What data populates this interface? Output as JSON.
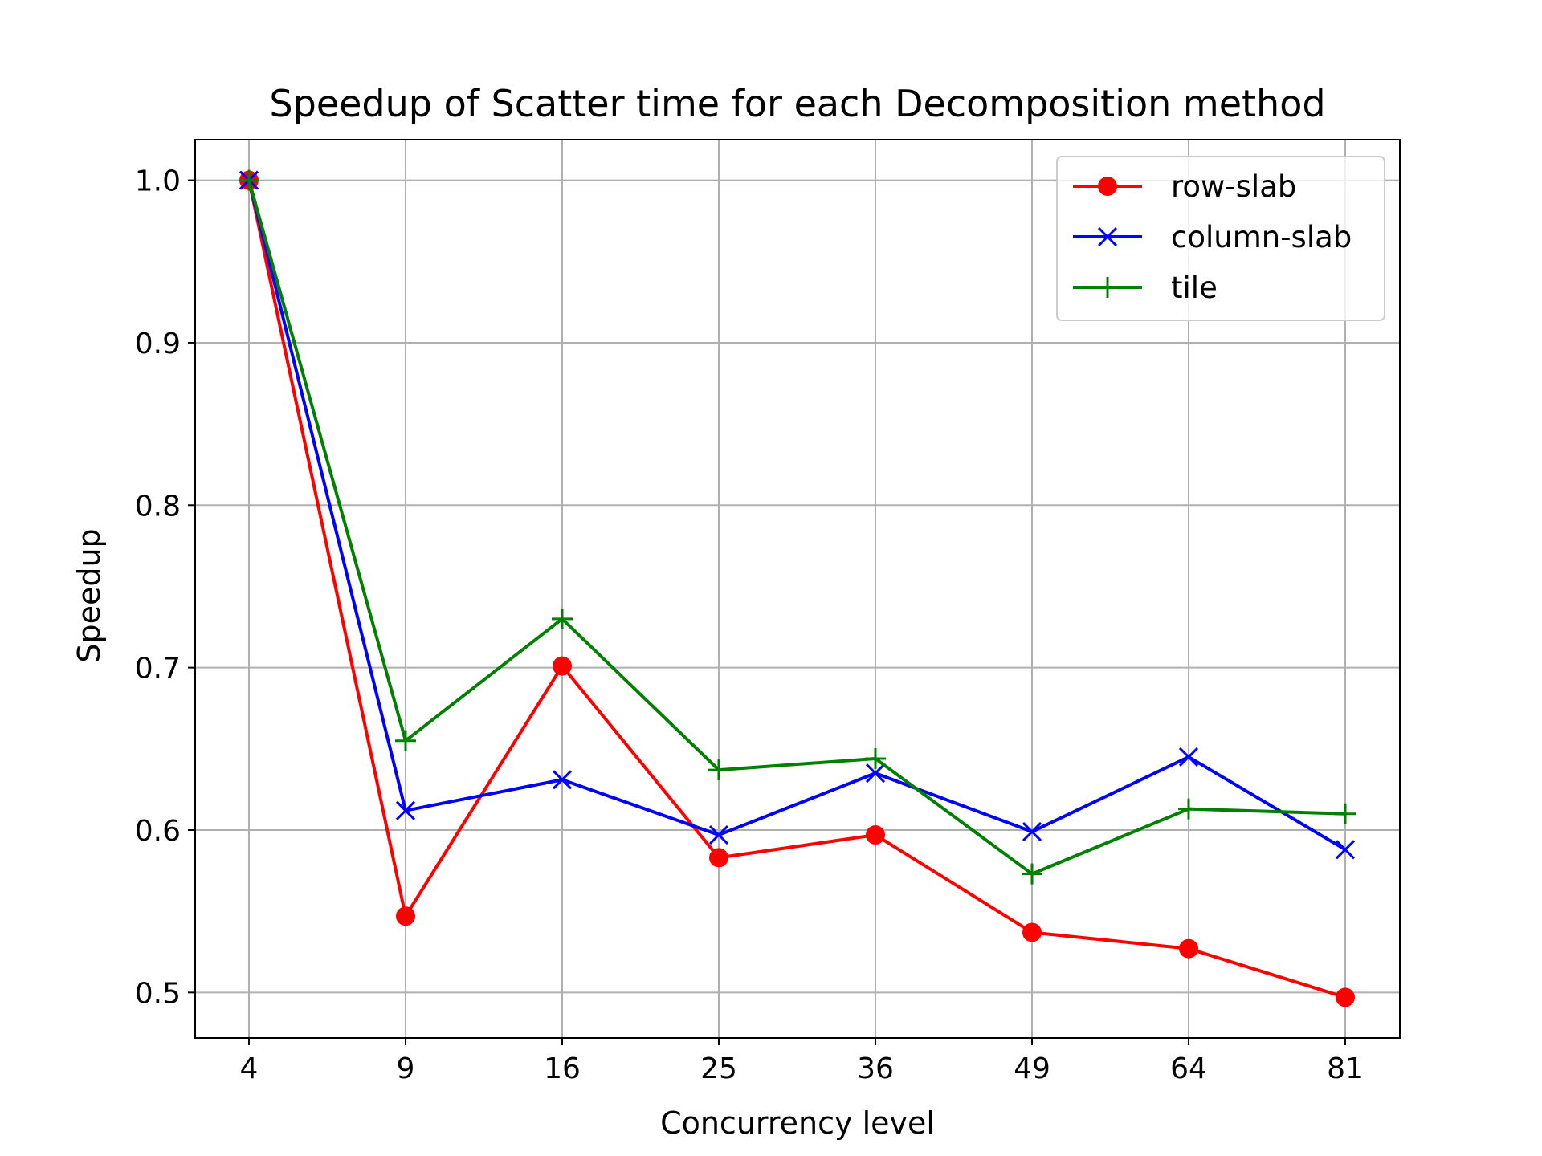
{
  "chart_data": {
    "type": "line",
    "title": "Speedup of Scatter time for each Decomposition method",
    "xlabel": "Concurrency level",
    "ylabel": "Speedup",
    "categories": [
      "4",
      "9",
      "16",
      "25",
      "36",
      "49",
      "64",
      "81"
    ],
    "ylim": [
      0.472,
      1.025
    ],
    "yticks": [
      "0.5",
      "0.6",
      "0.7",
      "0.8",
      "0.9",
      "1.0"
    ],
    "grid": true,
    "legend_position": "top-right",
    "series": [
      {
        "name": "row-slab",
        "color": "#ff0000",
        "marker": "circle",
        "values": [
          1.0,
          0.547,
          0.701,
          0.583,
          0.597,
          0.537,
          0.527,
          0.497
        ]
      },
      {
        "name": "column-slab",
        "color": "#0000ff",
        "marker": "x",
        "values": [
          1.0,
          0.612,
          0.631,
          0.597,
          0.635,
          0.599,
          0.645,
          0.588
        ]
      },
      {
        "name": "tile",
        "color": "#008000",
        "marker": "plus",
        "values": [
          1.0,
          0.655,
          0.73,
          0.637,
          0.644,
          0.573,
          0.613,
          0.61
        ]
      }
    ]
  }
}
